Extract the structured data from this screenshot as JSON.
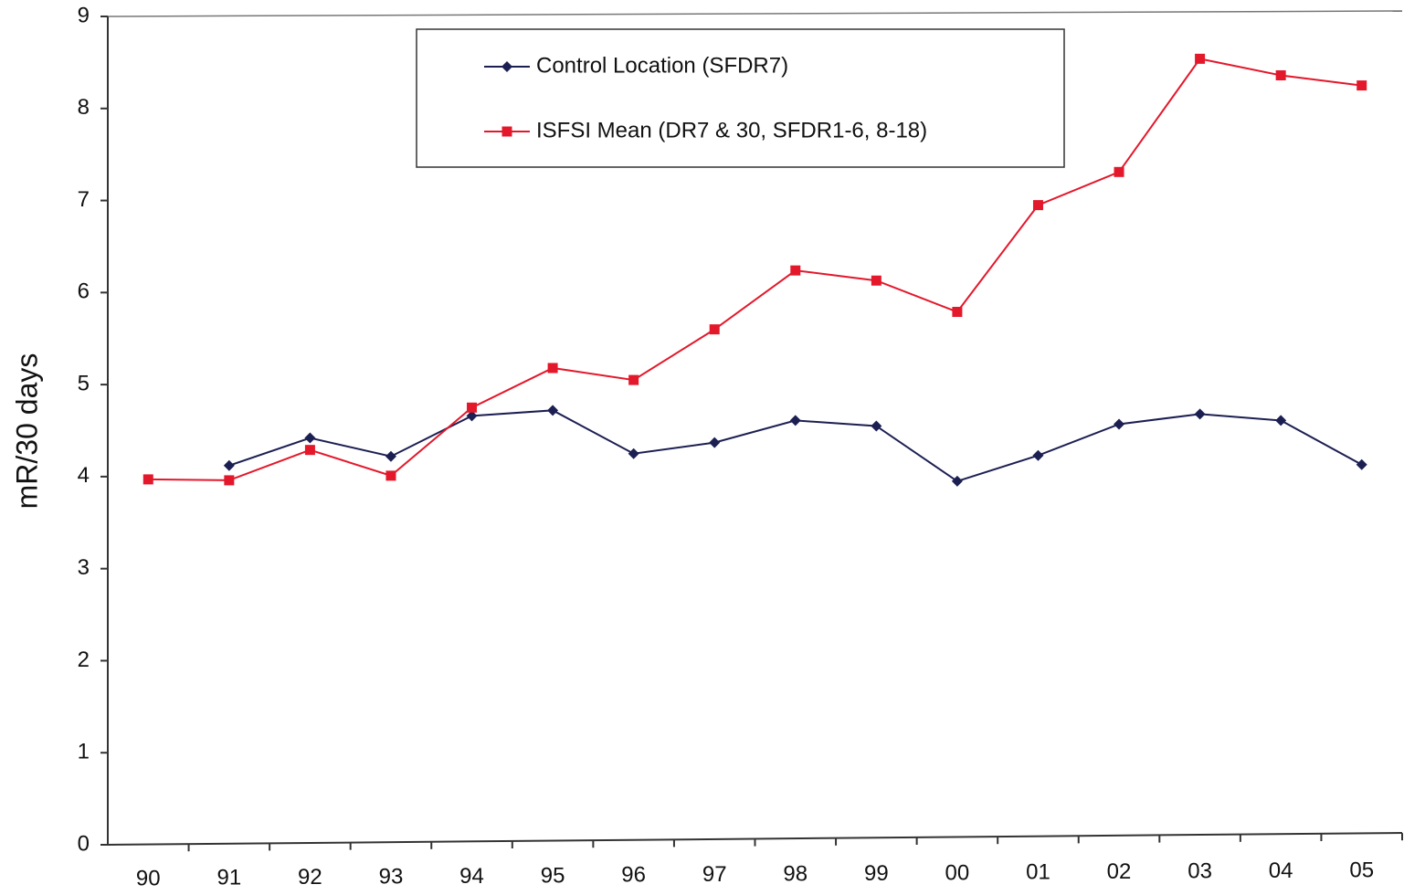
{
  "chart_data": {
    "type": "line",
    "ylabel": "mR/30 days",
    "categories": [
      "90",
      "91",
      "92",
      "93",
      "94",
      "95",
      "96",
      "97",
      "98",
      "99",
      "00",
      "01",
      "02",
      "03",
      "04",
      "05"
    ],
    "series": [
      {
        "name": "Control Location (SFDR7)",
        "color": "#1c1f52",
        "marker": "diamond",
        "values": [
          null,
          4.12,
          4.42,
          4.22,
          4.66,
          4.72,
          4.25,
          4.37,
          4.61,
          4.55,
          3.95,
          4.23,
          4.57,
          4.68,
          4.61,
          4.13
        ]
      },
      {
        "name": "ISFSI Mean (DR7 & 30, SFDR1-6, 8-18)",
        "color": "#e3182b",
        "marker": "square",
        "values": [
          3.97,
          3.96,
          4.29,
          4.01,
          4.75,
          5.18,
          5.05,
          5.6,
          6.24,
          6.13,
          5.79,
          6.95,
          7.31,
          8.54,
          8.36,
          8.25
        ]
      }
    ],
    "ylim": [
      0,
      9
    ],
    "yticks": [
      0,
      1,
      2,
      3,
      4,
      5,
      6,
      7,
      8,
      9
    ],
    "grid": false
  }
}
